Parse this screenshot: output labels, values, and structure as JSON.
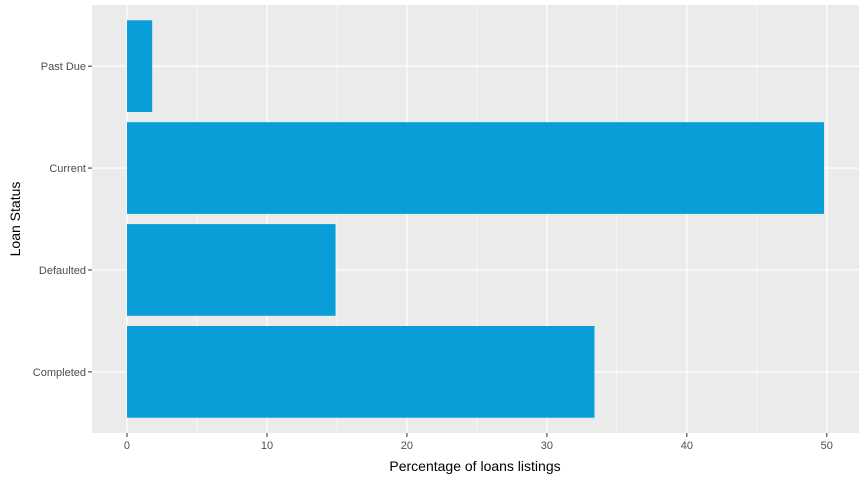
{
  "chart_data": {
    "type": "bar",
    "orientation": "horizontal",
    "categories": [
      "Completed",
      "Defaulted",
      "Current",
      "Past Due"
    ],
    "values": [
      33.4,
      14.9,
      49.8,
      1.8
    ],
    "xlabel": "Percentage of loans listings",
    "ylabel": "Loan Status",
    "xlim": [
      -2.5,
      52.3
    ],
    "xticks": [
      0,
      10,
      20,
      30,
      40,
      50
    ],
    "grid": true,
    "colors": {
      "bar": "#0a9ed9",
      "panel": "#ebebeb",
      "gridline": "#ffffff",
      "tick": "#333333"
    }
  }
}
